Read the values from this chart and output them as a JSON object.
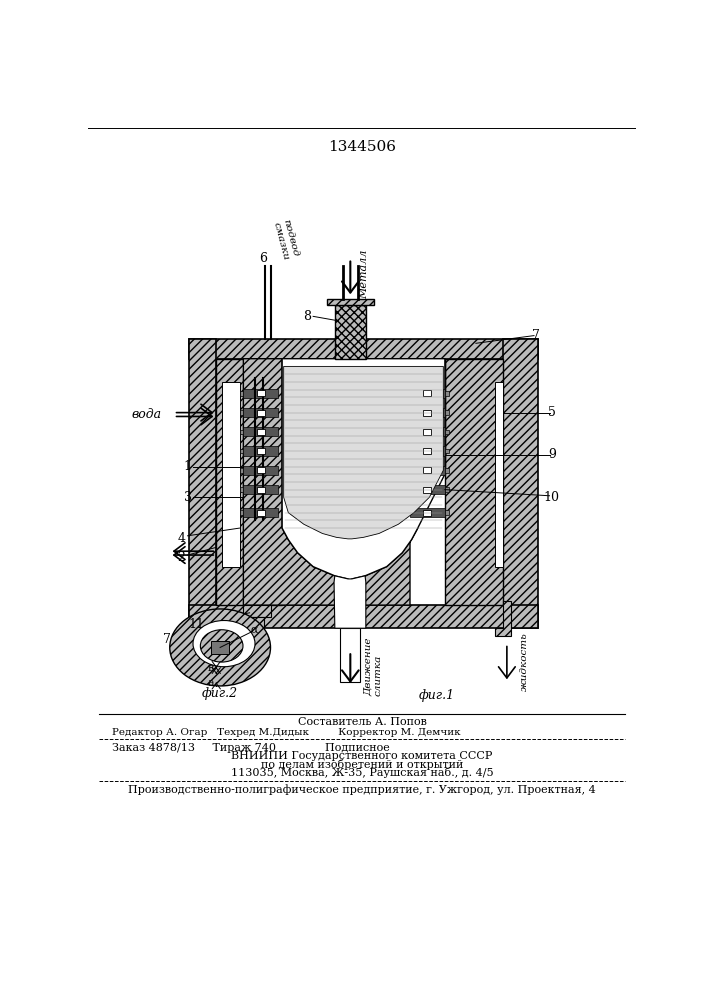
{
  "patent_number": "1344506",
  "bg_color": "#ffffff",
  "lc": "#000000",
  "footer_lines": [
    "Составитель А. Попов",
    "Редактор А. Огар   Техред М.Дидык         Корректор М. Демчик",
    "Заказ 4878/13     Тираж 740              Подписное",
    "ВНИИПИ Государственного комитета СССР",
    "по делам изобретений и открытий",
    "113035, Москва, Ж-35, Раушская наб., д. 4/5",
    "Производственно-полиграфическое предприятие, г. Ужгород, ул. Проектная, 4"
  ],
  "fig1_caption": "фиг.1",
  "fig2_caption": "фиг.2"
}
